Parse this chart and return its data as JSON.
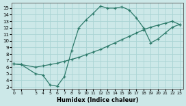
{
  "xlabel": "Humidex (Indice chaleur)",
  "bg_color": "#cce8e8",
  "grid_color": "#aad4d4",
  "line_color": "#2d7a6a",
  "line1_x": [
    0,
    1,
    3,
    4,
    5,
    6,
    7,
    8,
    9,
    10,
    11,
    12,
    13,
    14,
    15,
    16,
    17,
    18,
    19,
    20,
    21,
    22,
    23
  ],
  "line1_y": [
    6.5,
    6.4,
    5.0,
    4.8,
    3.3,
    3.1,
    4.6,
    8.5,
    12.0,
    13.2,
    14.2,
    15.3,
    15.0,
    15.0,
    15.2,
    14.7,
    13.5,
    12.0,
    9.7,
    10.3,
    11.2,
    12.1,
    12.5
  ],
  "line2_x": [
    0,
    1,
    3,
    4,
    5,
    6,
    7,
    8,
    9,
    10,
    11,
    12,
    13,
    14,
    15,
    16,
    17,
    18,
    19,
    20,
    21,
    22,
    23
  ],
  "line2_y": [
    6.5,
    6.4,
    6.0,
    6.2,
    6.4,
    6.6,
    6.9,
    7.2,
    7.5,
    7.9,
    8.3,
    8.7,
    9.2,
    9.7,
    10.2,
    10.7,
    11.2,
    11.7,
    12.1,
    12.4,
    12.7,
    13.0,
    12.5
  ],
  "xlim": [
    -0.3,
    23.5
  ],
  "ylim": [
    2.7,
    15.8
  ],
  "xticks": [
    0,
    1,
    3,
    4,
    5,
    6,
    7,
    8,
    9,
    10,
    11,
    12,
    13,
    14,
    15,
    16,
    17,
    18,
    19,
    20,
    21,
    22,
    23
  ],
  "yticks": [
    3,
    4,
    5,
    6,
    7,
    8,
    9,
    10,
    11,
    12,
    13,
    14,
    15
  ]
}
